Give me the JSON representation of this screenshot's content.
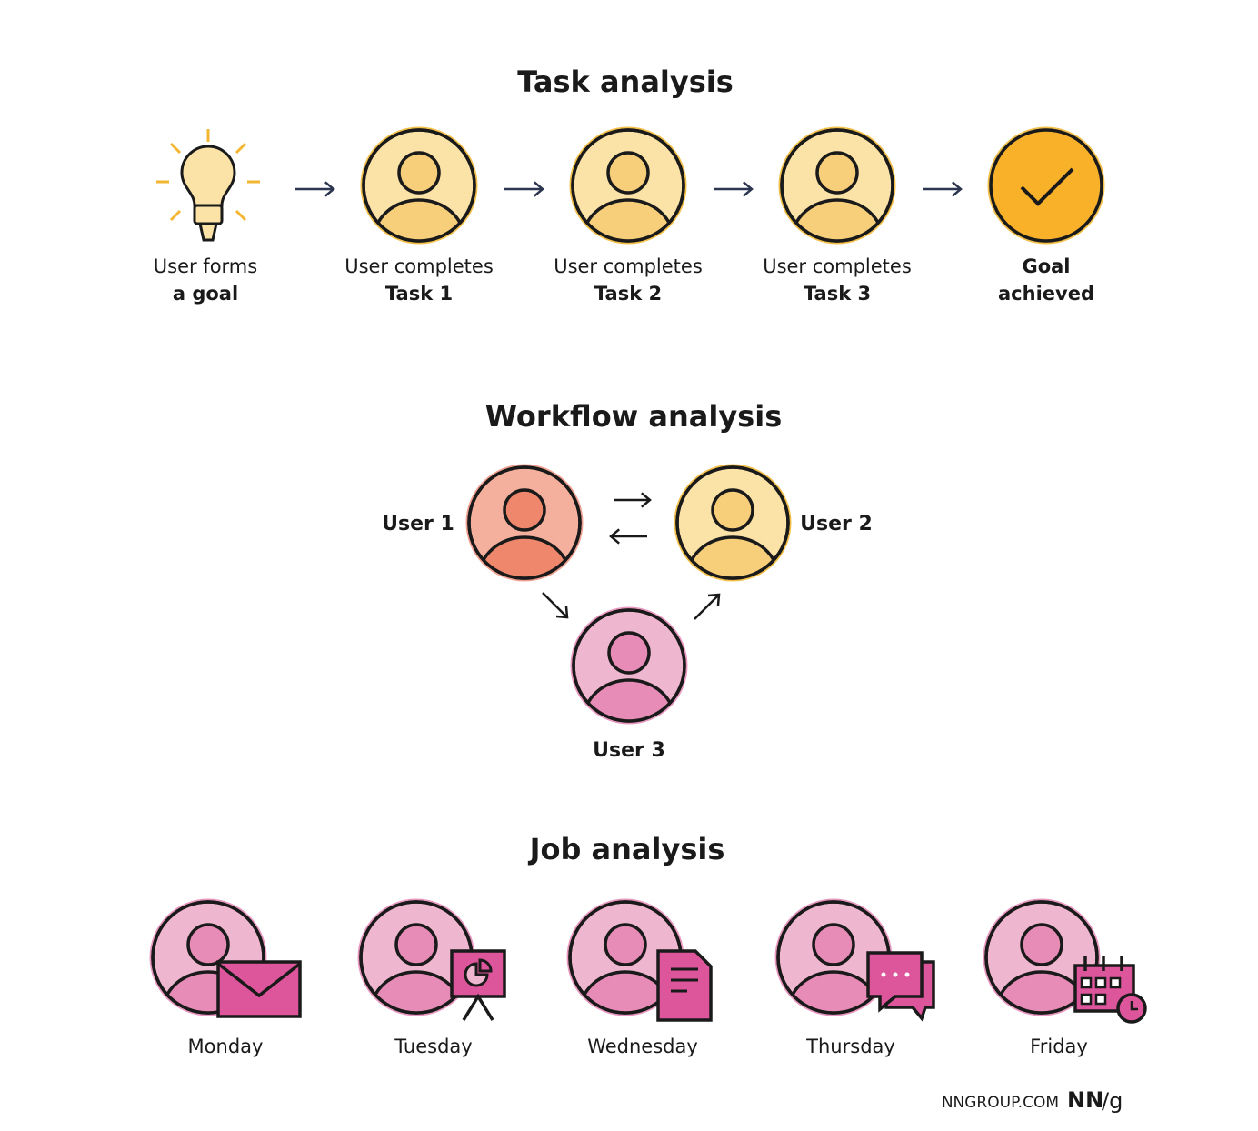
{
  "task_analysis": {
    "title": "Task analysis",
    "steps": [
      {
        "line1": "User forms",
        "line2": "a goal"
      },
      {
        "line1": "User completes",
        "line2": "Task 1"
      },
      {
        "line1": "User completes",
        "line2": "Task 2"
      },
      {
        "line1": "User completes",
        "line2": "Task 3"
      },
      {
        "line1": "Goal",
        "line2": "achieved"
      }
    ]
  },
  "workflow_analysis": {
    "title": "Workflow analysis",
    "users": [
      "User 1",
      "User 2",
      "User 3"
    ]
  },
  "job_analysis": {
    "title": "Job analysis",
    "days": [
      "Monday",
      "Tuesday",
      "Wednesday",
      "Thursday",
      "Friday"
    ]
  },
  "footer": {
    "site": "NNGROUP.COM",
    "logo_main": "NN",
    "logo_suffix": "/g"
  }
}
